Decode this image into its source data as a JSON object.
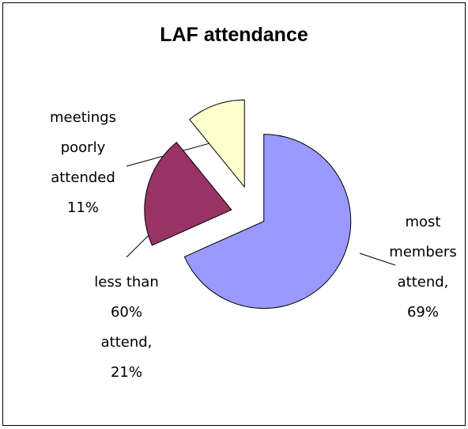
{
  "chart_data": {
    "type": "pie",
    "title": "LAF attendance",
    "categories": [
      "most members attend,",
      "less than 60% attend,",
      "meetings poorly attended"
    ],
    "values": [
      69,
      21,
      11
    ],
    "value_labels": [
      "69%",
      "21%",
      "11%"
    ],
    "colors": [
      "#9999ff",
      "#993366",
      "#ffffcc"
    ]
  }
}
